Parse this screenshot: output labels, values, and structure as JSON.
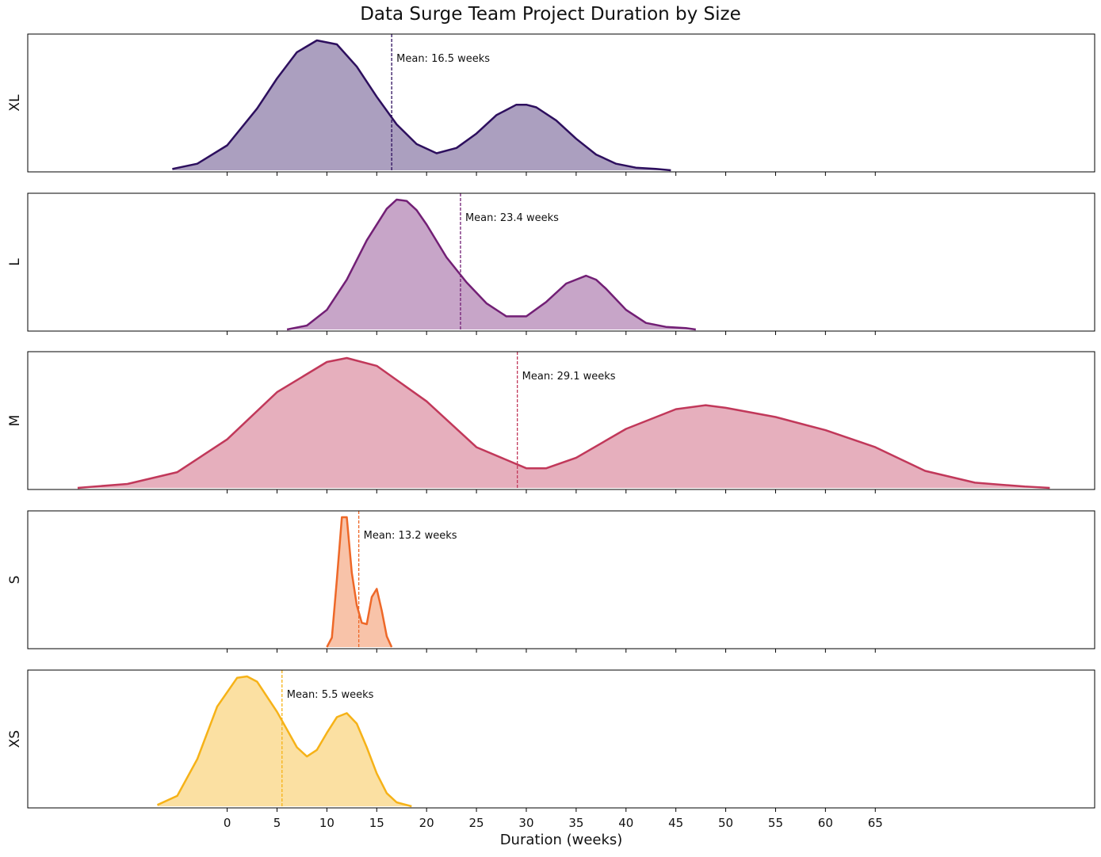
{
  "chart_data": {
    "type": "area",
    "title": "Data Surge Team Project Duration by Size",
    "xlabel": "Duration (weeks)",
    "x_ticks": [
      0,
      5,
      10,
      15,
      20,
      25,
      30,
      35,
      40,
      45,
      50,
      55,
      60,
      65
    ],
    "xlim": [
      -20,
      87
    ],
    "grid": false,
    "legend": "none",
    "series": [
      {
        "name": "XL",
        "color": "#2d0f5e",
        "mean": 16.5,
        "mean_label": "Mean: 16.5 weeks",
        "x": [
          -5.5,
          -3,
          0,
          3,
          5,
          7,
          9,
          11,
          13,
          15,
          17,
          19,
          21,
          23,
          25,
          27,
          29,
          30,
          31,
          33,
          35,
          37,
          39,
          41,
          43,
          44.5
        ],
        "density": [
          0.01,
          0.05,
          0.19,
          0.47,
          0.7,
          0.9,
          0.99,
          0.96,
          0.79,
          0.56,
          0.35,
          0.2,
          0.13,
          0.17,
          0.28,
          0.42,
          0.5,
          0.5,
          0.48,
          0.38,
          0.24,
          0.12,
          0.05,
          0.02,
          0.01,
          0.0
        ]
      },
      {
        "name": "L",
        "color": "#721f75",
        "mean": 23.4,
        "mean_label": "Mean: 23.4 weeks",
        "x": [
          6,
          8,
          10,
          12,
          14,
          16,
          17,
          18,
          19,
          20,
          22,
          24,
          26,
          28,
          30,
          32,
          34,
          36,
          37,
          38,
          40,
          42,
          44,
          46,
          47
        ],
        "density": [
          0.0,
          0.03,
          0.15,
          0.38,
          0.68,
          0.92,
          0.99,
          0.98,
          0.91,
          0.8,
          0.55,
          0.36,
          0.2,
          0.1,
          0.1,
          0.21,
          0.35,
          0.41,
          0.38,
          0.31,
          0.15,
          0.05,
          0.02,
          0.01,
          0.0
        ]
      },
      {
        "name": "M",
        "color": "#c1385a",
        "mean": 29.1,
        "mean_label": "Mean: 29.1 weeks",
        "x": [
          -15,
          -10,
          -5,
          0,
          5,
          10,
          12,
          15,
          20,
          25,
          30,
          32,
          35,
          40,
          45,
          48,
          50,
          55,
          60,
          65,
          70,
          75,
          80,
          82.5
        ],
        "density": [
          0.0,
          0.03,
          0.12,
          0.37,
          0.73,
          0.96,
          0.99,
          0.93,
          0.66,
          0.31,
          0.15,
          0.15,
          0.23,
          0.45,
          0.6,
          0.63,
          0.61,
          0.54,
          0.44,
          0.31,
          0.13,
          0.04,
          0.01,
          0.0
        ]
      },
      {
        "name": "S",
        "color": "#ee6828",
        "mean": 13.2,
        "mean_label": "Mean: 13.2 weeks",
        "x": [
          10,
          10.5,
          11,
          11.5,
          12,
          12.5,
          13,
          13.5,
          14,
          14.5,
          15,
          15.5,
          16,
          16.5
        ],
        "density": [
          0.0,
          0.07,
          0.5,
          0.96,
          0.96,
          0.55,
          0.31,
          0.18,
          0.17,
          0.37,
          0.43,
          0.27,
          0.08,
          0.0
        ]
      },
      {
        "name": "XS",
        "color": "#f6b217",
        "mean": 5.5,
        "mean_label": "Mean: 5.5 weeks",
        "x": [
          -7,
          -5,
          -3,
          -1,
          1,
          2,
          3,
          5,
          7,
          8,
          9,
          10,
          11,
          12,
          13,
          14,
          15,
          16,
          17,
          18.5
        ],
        "density": [
          0.01,
          0.08,
          0.36,
          0.76,
          0.98,
          0.99,
          0.95,
          0.72,
          0.45,
          0.38,
          0.43,
          0.56,
          0.68,
          0.71,
          0.63,
          0.45,
          0.25,
          0.1,
          0.03,
          0.0
        ]
      }
    ]
  }
}
